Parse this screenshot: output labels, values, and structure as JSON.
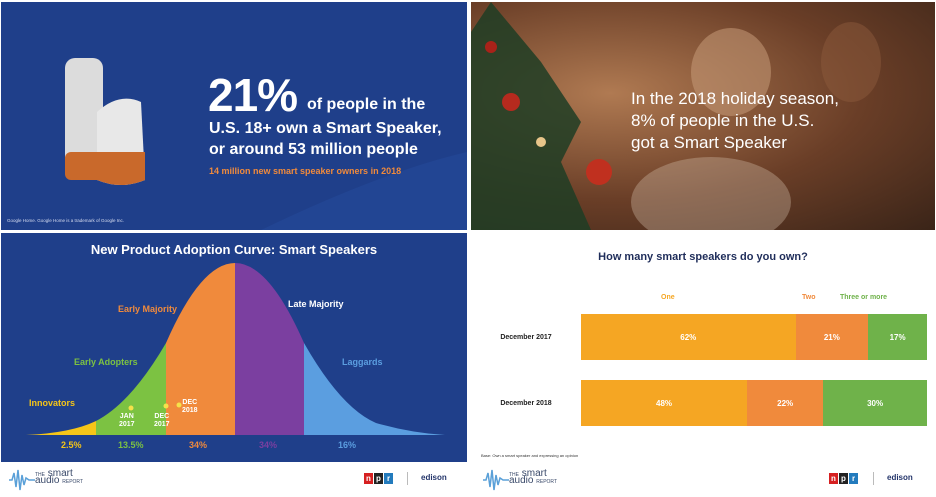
{
  "top_left": {
    "big_percent": "21%",
    "line1": "of people in the",
    "line2": "U.S. 18+ own a Smart Speaker,",
    "line3": "or around 53 million people",
    "subline": "14 million new smart speaker owners in 2018",
    "footnote": "Google Home. Google Home is a trademark of Google Inc."
  },
  "top_right": {
    "line1": "In the 2018 holiday season,",
    "line2": "8% of people in the U.S.",
    "line3": "got a Smart Speaker"
  },
  "bottom_left": {
    "title": "New Product Adoption Curve: Smart Speakers",
    "segments": [
      {
        "label": "Innovators",
        "percent": "2.5%",
        "color": "#f5c518"
      },
      {
        "label": "Early Adopters",
        "percent": "13.5%",
        "color": "#7cc242"
      },
      {
        "label": "Early Majority",
        "percent": "34%",
        "color": "#f08a3c"
      },
      {
        "label": "Late Majority",
        "percent": "34%",
        "color": "#7b3fa0"
      },
      {
        "label": "Laggards",
        "percent": "16%",
        "color": "#5b9ee0"
      }
    ],
    "markers": [
      "JAN\n2017",
      "DEC\n2017",
      "DEC\n2018"
    ]
  },
  "bottom_right": {
    "title": "How many smart speakers do you own?",
    "columns": [
      "One",
      "Two",
      "Three or more"
    ],
    "column_colors": [
      "#f5a623",
      "#f08a3c",
      "#6fb24a"
    ],
    "rows": [
      {
        "label": "December 2017",
        "values": [
          "62%",
          "21%",
          "17%"
        ]
      },
      {
        "label": "December 2018",
        "values": [
          "48%",
          "22%",
          "30%"
        ]
      }
    ],
    "note": "Base: Own a smart speaker and expressing an opinion"
  },
  "footer": {
    "brand_the": "THE",
    "brand_smart": "smart",
    "brand_audio": "audio",
    "brand_report": "REPORT",
    "npr": [
      "n",
      "p",
      "r"
    ],
    "edison": "edison"
  },
  "chart_data": {
    "type": "bar",
    "title": "How many smart speakers do you own?",
    "categories": [
      "December 2017",
      "December 2018"
    ],
    "series": [
      {
        "name": "One",
        "values": [
          62,
          48
        ]
      },
      {
        "name": "Two",
        "values": [
          21,
          22
        ]
      },
      {
        "name": "Three or more",
        "values": [
          17,
          30
        ]
      }
    ],
    "stacked": true,
    "orientation": "horizontal",
    "xlim": [
      0,
      100
    ]
  }
}
